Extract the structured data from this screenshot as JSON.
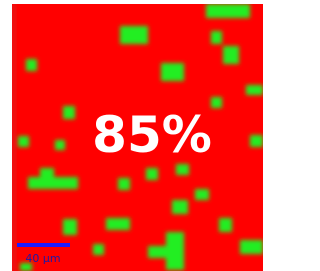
{
  "overlay_label": "85%",
  "scale_bar": {
    "label": "40 μm"
  }
}
